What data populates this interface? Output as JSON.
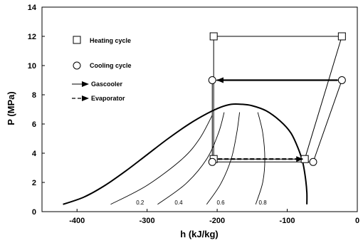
{
  "chart_data": {
    "type": "line",
    "xlabel": "h (kJ/kg)",
    "ylabel": "P (MPa)",
    "xlim": [
      -450,
      0
    ],
    "ylim": [
      0,
      14
    ],
    "x_ticks": [
      -400,
      -300,
      -200,
      -100,
      0
    ],
    "y_ticks": [
      0,
      2,
      4,
      6,
      8,
      10,
      12,
      14
    ],
    "grid": false,
    "legend_position": "top-left",
    "legend": [
      {
        "label": "Heating cycle",
        "marker": "square"
      },
      {
        "label": "Cooling cycle",
        "marker": "circle"
      },
      {
        "label": "Gascooler",
        "line": "solid-arrow"
      },
      {
        "label": "Evaporator",
        "line": "dashed-arrow"
      }
    ],
    "saturation_dome": [
      [
        -420,
        0.5
      ],
      [
        -390,
        1.0
      ],
      [
        -360,
        1.8
      ],
      [
        -330,
        2.8
      ],
      [
        -300,
        3.9
      ],
      [
        -270,
        5.0
      ],
      [
        -240,
        6.0
      ],
      [
        -215,
        6.7
      ],
      [
        -195,
        7.15
      ],
      [
        -180,
        7.35
      ],
      [
        -165,
        7.35
      ],
      [
        -150,
        7.25
      ],
      [
        -130,
        6.9
      ],
      [
        -110,
        6.2
      ],
      [
        -95,
        5.4
      ],
      [
        -85,
        4.4
      ],
      [
        -78,
        3.4
      ],
      [
        -74,
        2.3
      ],
      [
        -72,
        1.3
      ],
      [
        -72,
        0.5
      ]
    ],
    "quality_lines": [
      {
        "label": "0.2",
        "points": [
          [
            -352,
            0.5
          ],
          [
            -300,
            1.8
          ],
          [
            -250,
            3.6
          ],
          [
            -225,
            5.0
          ],
          [
            -207,
            6.6
          ]
        ]
      },
      {
        "label": "0.4",
        "points": [
          [
            -285,
            0.5
          ],
          [
            -245,
            1.9
          ],
          [
            -215,
            3.6
          ],
          [
            -198,
            5.4
          ],
          [
            -190,
            6.8
          ]
        ]
      },
      {
        "label": "0.6",
        "points": [
          [
            -215,
            0.5
          ],
          [
            -195,
            1.9
          ],
          [
            -180,
            3.6
          ],
          [
            -172,
            5.4
          ],
          [
            -168,
            6.8
          ]
        ]
      },
      {
        "label": "0.8",
        "points": [
          [
            -145,
            0.5
          ],
          [
            -135,
            2.0
          ],
          [
            -132,
            3.6
          ],
          [
            -135,
            5.4
          ],
          [
            -142,
            6.8
          ]
        ]
      }
    ],
    "heating_cycle": [
      [
        -205,
        12.0
      ],
      [
        -22,
        12.0
      ],
      [
        -75,
        3.6
      ],
      [
        -205,
        3.6
      ],
      [
        -205,
        12.0
      ]
    ],
    "cooling_cycle": [
      [
        -207,
        9.0
      ],
      [
        -22,
        9.0
      ],
      [
        -63,
        3.4
      ],
      [
        -207,
        3.4
      ],
      [
        -207,
        9.0
      ]
    ],
    "gascooler_arrow": {
      "from": [
        -22,
        9.0
      ],
      "to": [
        -200,
        9.0
      ]
    },
    "evaporator_arrow": {
      "from": [
        -205,
        3.6
      ],
      "to": [
        -78,
        3.6
      ]
    },
    "quality_label_positions": [
      {
        "label": "0.2",
        "x": -310
      },
      {
        "label": "0.4",
        "x": -255
      },
      {
        "label": "0.6",
        "x": -195
      },
      {
        "label": "0.8",
        "x": -135
      }
    ]
  }
}
